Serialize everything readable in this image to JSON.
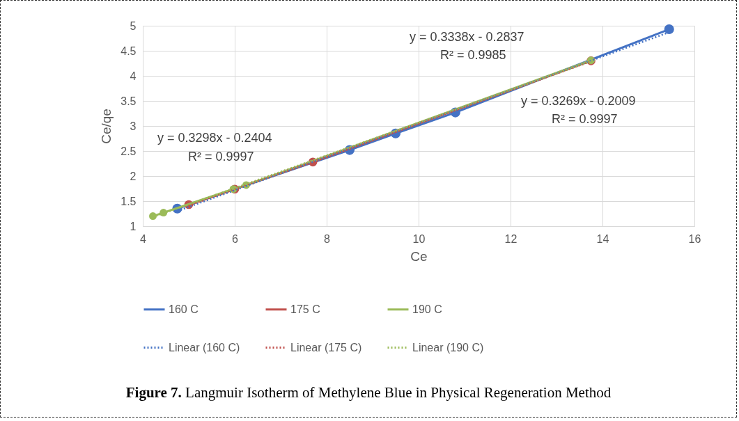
{
  "chart_data": {
    "type": "line",
    "xlabel": "Ce",
    "ylabel": "Ce/qe",
    "xlim": [
      4,
      16
    ],
    "xticks": [
      4,
      6,
      8,
      10,
      12,
      14,
      16
    ],
    "ylim": [
      1,
      5
    ],
    "yticks": [
      1,
      1.5,
      2,
      2.5,
      3,
      3.5,
      4,
      4.5,
      5
    ],
    "grid": true,
    "legend": "bottom",
    "marker": "circle",
    "series": [
      {
        "name": "160 C",
        "color": "#4472c4",
        "x": [
          4.75,
          8.5,
          9.5,
          10.8,
          15.45
        ],
        "values": [
          1.35,
          2.52,
          2.85,
          3.27,
          4.93
        ]
      },
      {
        "name": "175 C",
        "color": "#c0504d",
        "x": [
          5.0,
          6.0,
          7.7,
          13.75
        ],
        "values": [
          1.43,
          1.74,
          2.28,
          4.3
        ]
      },
      {
        "name": "190 C",
        "color": "#9bbb59",
        "x": [
          4.22,
          4.45,
          5.97,
          6.25,
          13.75
        ],
        "values": [
          1.2,
          1.27,
          1.74,
          1.82,
          4.31
        ]
      },
      {
        "name": "Linear (160 C)",
        "color": "#4472c4",
        "type": "line",
        "line_style": "dotted",
        "marker": "none",
        "x": [
          4.75,
          15.45
        ],
        "values": [
          1.3,
          4.87
        ]
      },
      {
        "name": "Linear (175 C)",
        "color": "#c0504d",
        "type": "line",
        "line_style": "dotted",
        "marker": "none",
        "x": [
          5.0,
          13.75
        ],
        "values": [
          1.41,
          4.29
        ]
      },
      {
        "name": "Linear (190 C)",
        "color": "#9bbb59",
        "type": "line",
        "line_style": "dotted",
        "marker": "none",
        "x": [
          4.22,
          13.75
        ],
        "values": [
          1.18,
          4.29
        ]
      }
    ],
    "annotations": [
      "y = 0.3298x - 0.2404",
      "R² = 0.9997",
      "y = 0.3338x - 0.2837",
      "R² = 0.9985",
      "y = 0.3269x - 0.2009",
      "R² = 0.9997",
      "Figure 7. Langmuir Isotherm of Methylene Blue in Physical Regeneration Method"
    ]
  }
}
